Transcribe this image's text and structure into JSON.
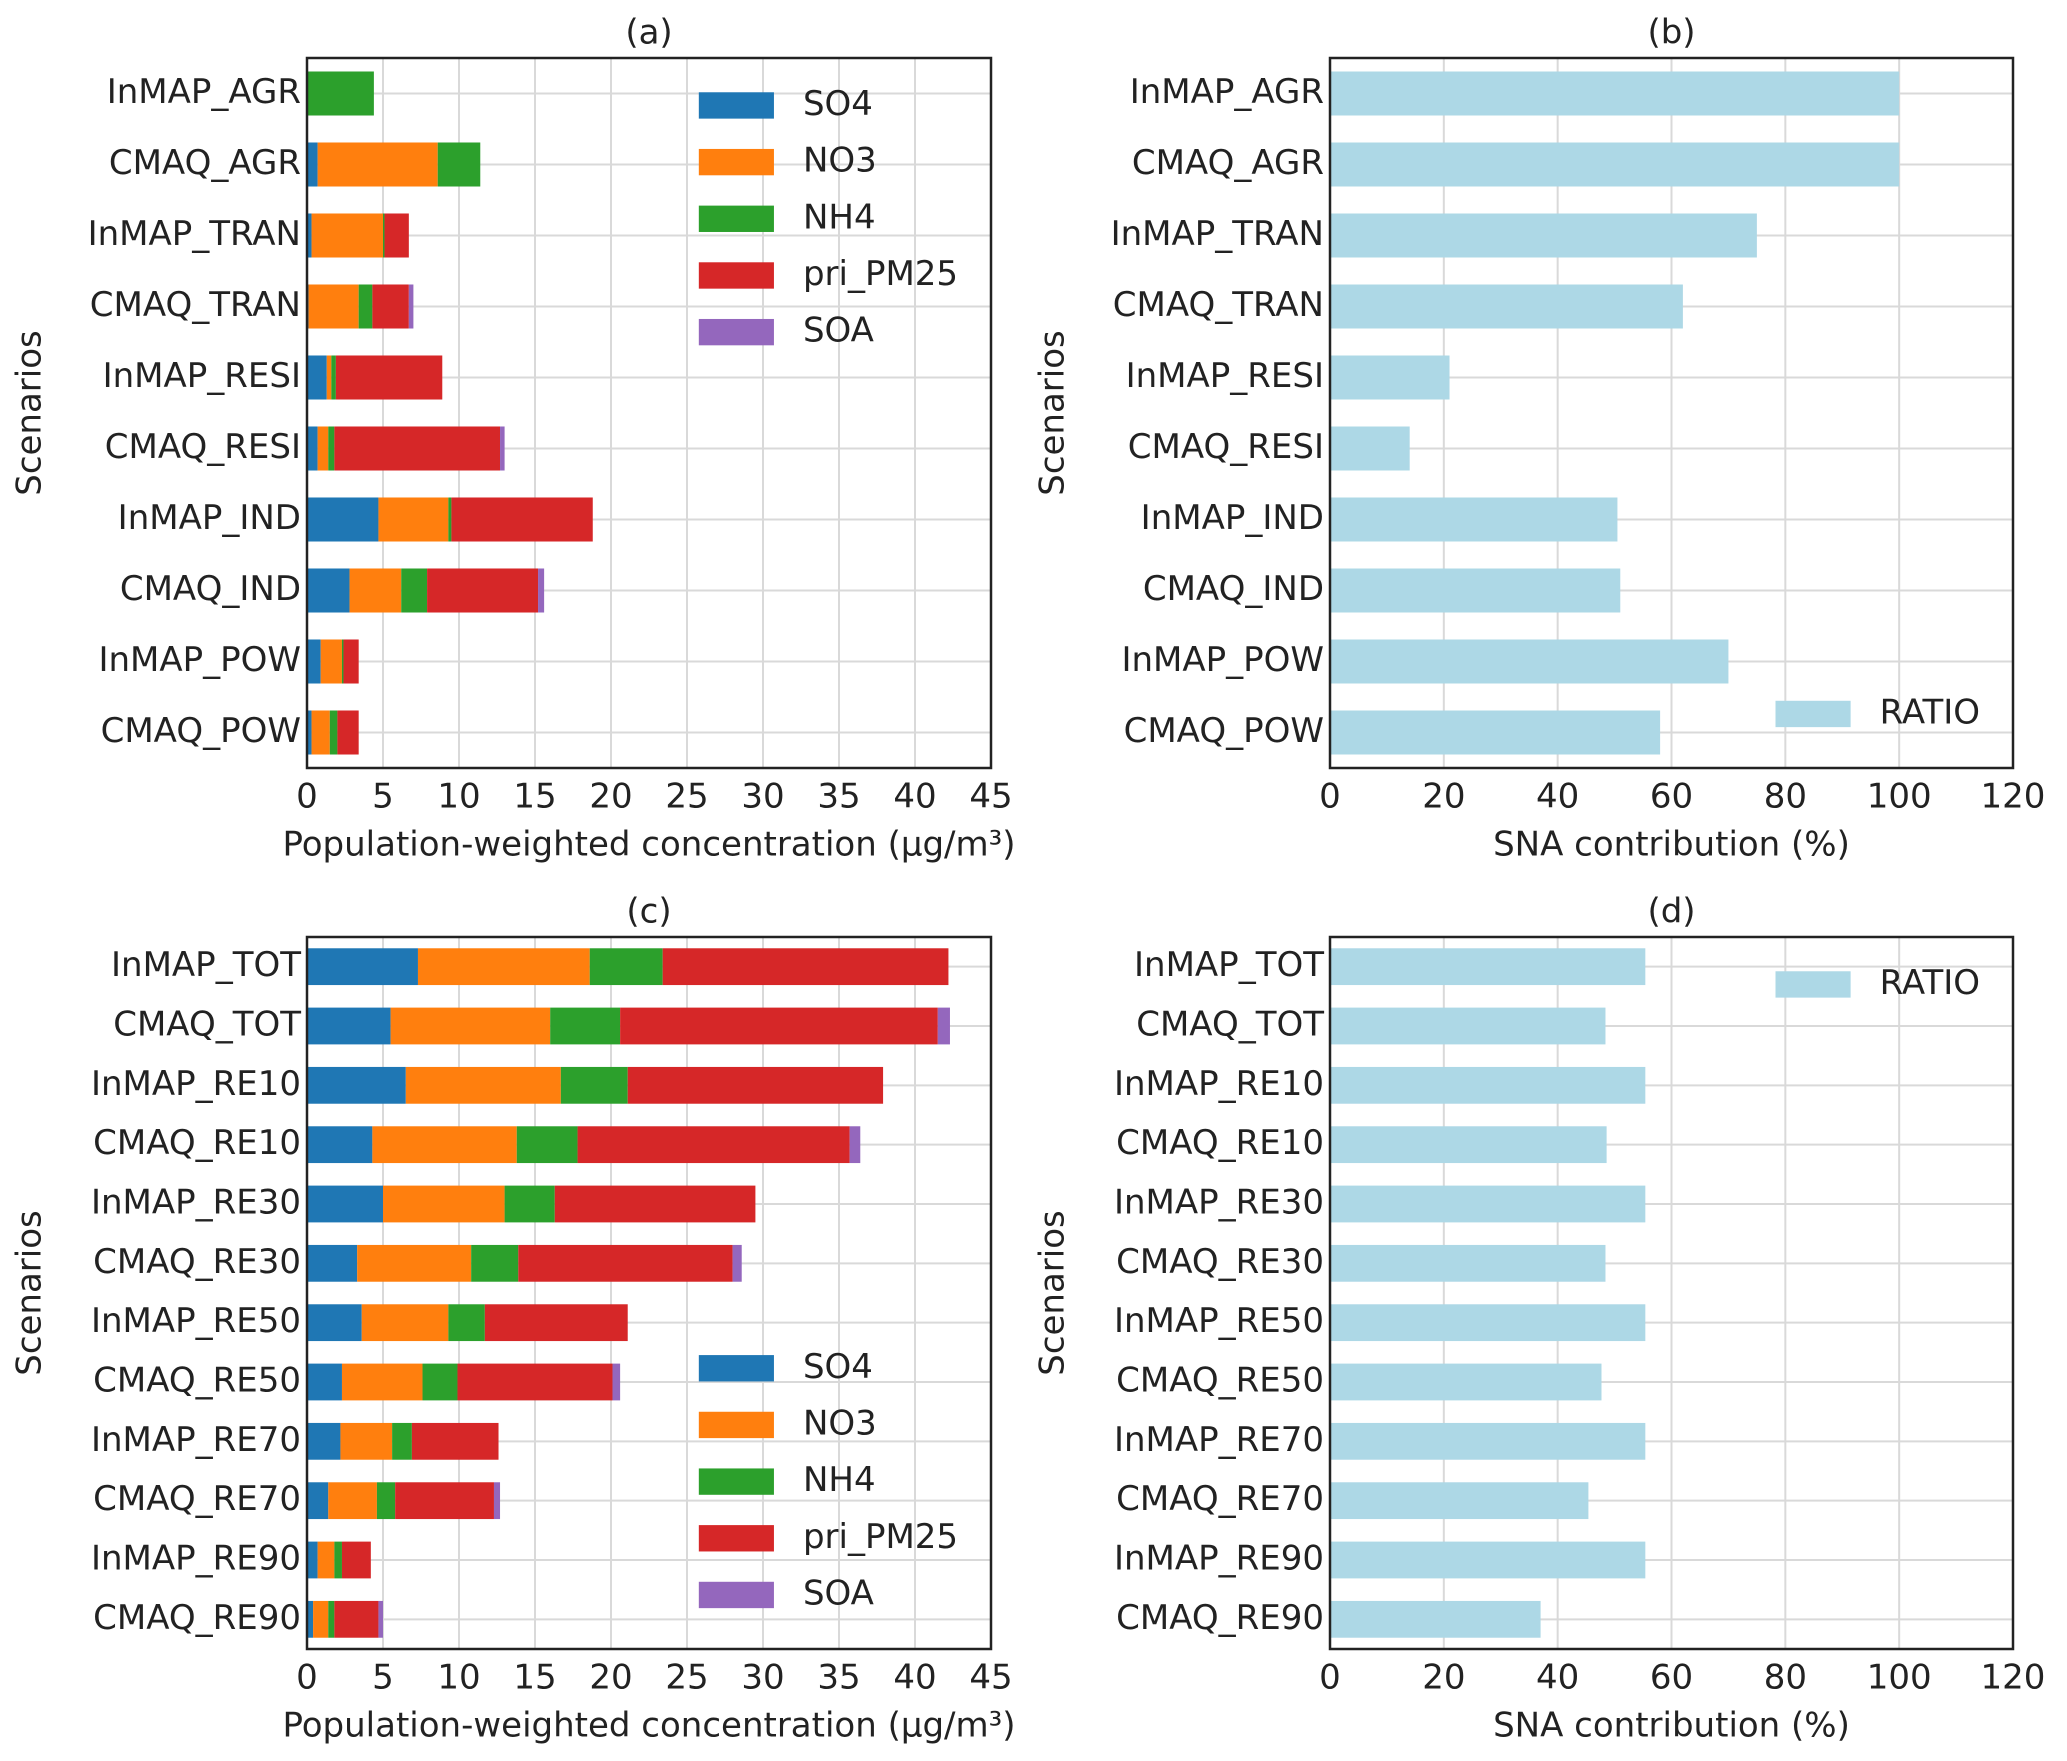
{
  "chart_data": [
    {
      "type": "barh_stacked",
      "title": "(a)",
      "xlabel": "Population-weighted concentration (μg/m³)",
      "ylabel": "Scenarios",
      "categories": [
        "InMAP_AGR",
        "CMAQ_AGR",
        "InMAP_TRAN",
        "CMAQ_TRAN",
        "InMAP_RESI",
        "CMAQ_RESI",
        "InMAP_IND",
        "CMAQ_IND",
        "InMAP_POW",
        "CMAQ_POW"
      ],
      "series": [
        {
          "name": "SO4",
          "color": "#1f77b4",
          "values": [
            0,
            0.7,
            0.3,
            0.1,
            1.3,
            0.7,
            4.7,
            2.8,
            0.9,
            0.3
          ]
        },
        {
          "name": "NO3",
          "color": "#ff7f0e",
          "values": [
            0,
            7.9,
            4.7,
            3.3,
            0.3,
            0.7,
            4.6,
            3.4,
            1.4,
            1.2
          ]
        },
        {
          "name": "NH4",
          "color": "#2ca02c",
          "values": [
            4.4,
            2.8,
            0.1,
            0.9,
            0.3,
            0.4,
            0.2,
            1.7,
            0.1,
            0.5
          ]
        },
        {
          "name": "pri_PM25",
          "color": "#d62728",
          "values": [
            0,
            0,
            1.6,
            2.4,
            7.0,
            10.9,
            9.3,
            7.3,
            1.0,
            1.4
          ]
        },
        {
          "name": "SOA",
          "color": "#9467bd",
          "values": [
            0,
            0,
            0,
            0.3,
            0,
            0.3,
            0,
            0.4,
            0,
            0
          ]
        }
      ],
      "xlim": [
        0,
        45
      ],
      "xticks": [
        0,
        5,
        10,
        15,
        20,
        25,
        30,
        35,
        40,
        45
      ],
      "grid": true,
      "legend": "upper right"
    },
    {
      "type": "barh_stacked",
      "title": "(b)",
      "xlabel": "SNA contribution (%)",
      "ylabel": "Scenarios",
      "categories": [
        "InMAP_AGR",
        "CMAQ_AGR",
        "InMAP_TRAN",
        "CMAQ_TRAN",
        "InMAP_RESI",
        "CMAQ_RESI",
        "InMAP_IND",
        "CMAQ_IND",
        "InMAP_POW",
        "CMAQ_POW"
      ],
      "series": [
        {
          "name": "RATIO",
          "color": "#add8e6",
          "values": [
            100,
            100,
            75,
            62,
            21,
            14,
            50.5,
            51,
            70,
            58
          ]
        }
      ],
      "xlim": [
        0,
        120
      ],
      "xticks": [
        0,
        20,
        40,
        60,
        80,
        100,
        120
      ],
      "grid": true,
      "legend": "lower right"
    },
    {
      "type": "barh_stacked",
      "title": "(c)",
      "xlabel": "Population-weighted concentration (μg/m³)",
      "ylabel": "Scenarios",
      "categories": [
        "InMAP_TOT",
        "CMAQ_TOT",
        "InMAP_RE10",
        "CMAQ_RE10",
        "InMAP_RE30",
        "CMAQ_RE30",
        "InMAP_RE50",
        "CMAQ_RE50",
        "InMAP_RE70",
        "CMAQ_RE70",
        "InMAP_RE90",
        "CMAQ_RE90"
      ],
      "series": [
        {
          "name": "SO4",
          "color": "#1f77b4",
          "values": [
            7.3,
            5.5,
            6.5,
            4.3,
            5.0,
            3.3,
            3.6,
            2.3,
            2.2,
            1.4,
            0.7,
            0.4
          ]
        },
        {
          "name": "NO3",
          "color": "#ff7f0e",
          "values": [
            11.3,
            10.5,
            10.2,
            9.5,
            8.0,
            7.5,
            5.7,
            5.3,
            3.4,
            3.2,
            1.1,
            1.0
          ]
        },
        {
          "name": "NH4",
          "color": "#2ca02c",
          "values": [
            4.8,
            4.6,
            4.4,
            4.0,
            3.3,
            3.1,
            2.4,
            2.3,
            1.3,
            1.2,
            0.5,
            0.4
          ]
        },
        {
          "name": "pri_PM25",
          "color": "#d62728",
          "values": [
            18.8,
            20.9,
            16.8,
            17.9,
            13.2,
            14.1,
            9.4,
            10.2,
            5.7,
            6.5,
            1.9,
            2.9
          ]
        },
        {
          "name": "SOA",
          "color": "#9467bd",
          "values": [
            0,
            0.8,
            0,
            0.7,
            0,
            0.6,
            0,
            0.5,
            0,
            0.4,
            0,
            0.3
          ]
        }
      ],
      "xlim": [
        0,
        45
      ],
      "xticks": [
        0,
        5,
        10,
        15,
        20,
        25,
        30,
        35,
        40,
        45
      ],
      "grid": true,
      "legend": "lower right"
    },
    {
      "type": "barh_stacked",
      "title": "(d)",
      "xlabel": "SNA contribution (%)",
      "ylabel": "Scenarios",
      "categories": [
        "InMAP_TOT",
        "CMAQ_TOT",
        "InMAP_RE10",
        "CMAQ_RE10",
        "InMAP_RE30",
        "CMAQ_RE30",
        "InMAP_RE50",
        "CMAQ_RE50",
        "InMAP_RE70",
        "CMAQ_RE70",
        "InMAP_RE90",
        "CMAQ_RE90"
      ],
      "series": [
        {
          "name": "RATIO",
          "color": "#add8e6",
          "values": [
            55.4,
            48.4,
            55.4,
            48.6,
            55.4,
            48.4,
            55.4,
            47.7,
            55.4,
            45.4,
            55.4,
            37
          ]
        }
      ],
      "xlim": [
        0,
        120
      ],
      "xticks": [
        0,
        20,
        40,
        60,
        80,
        100,
        120
      ],
      "grid": true,
      "legend": "upper right"
    }
  ]
}
